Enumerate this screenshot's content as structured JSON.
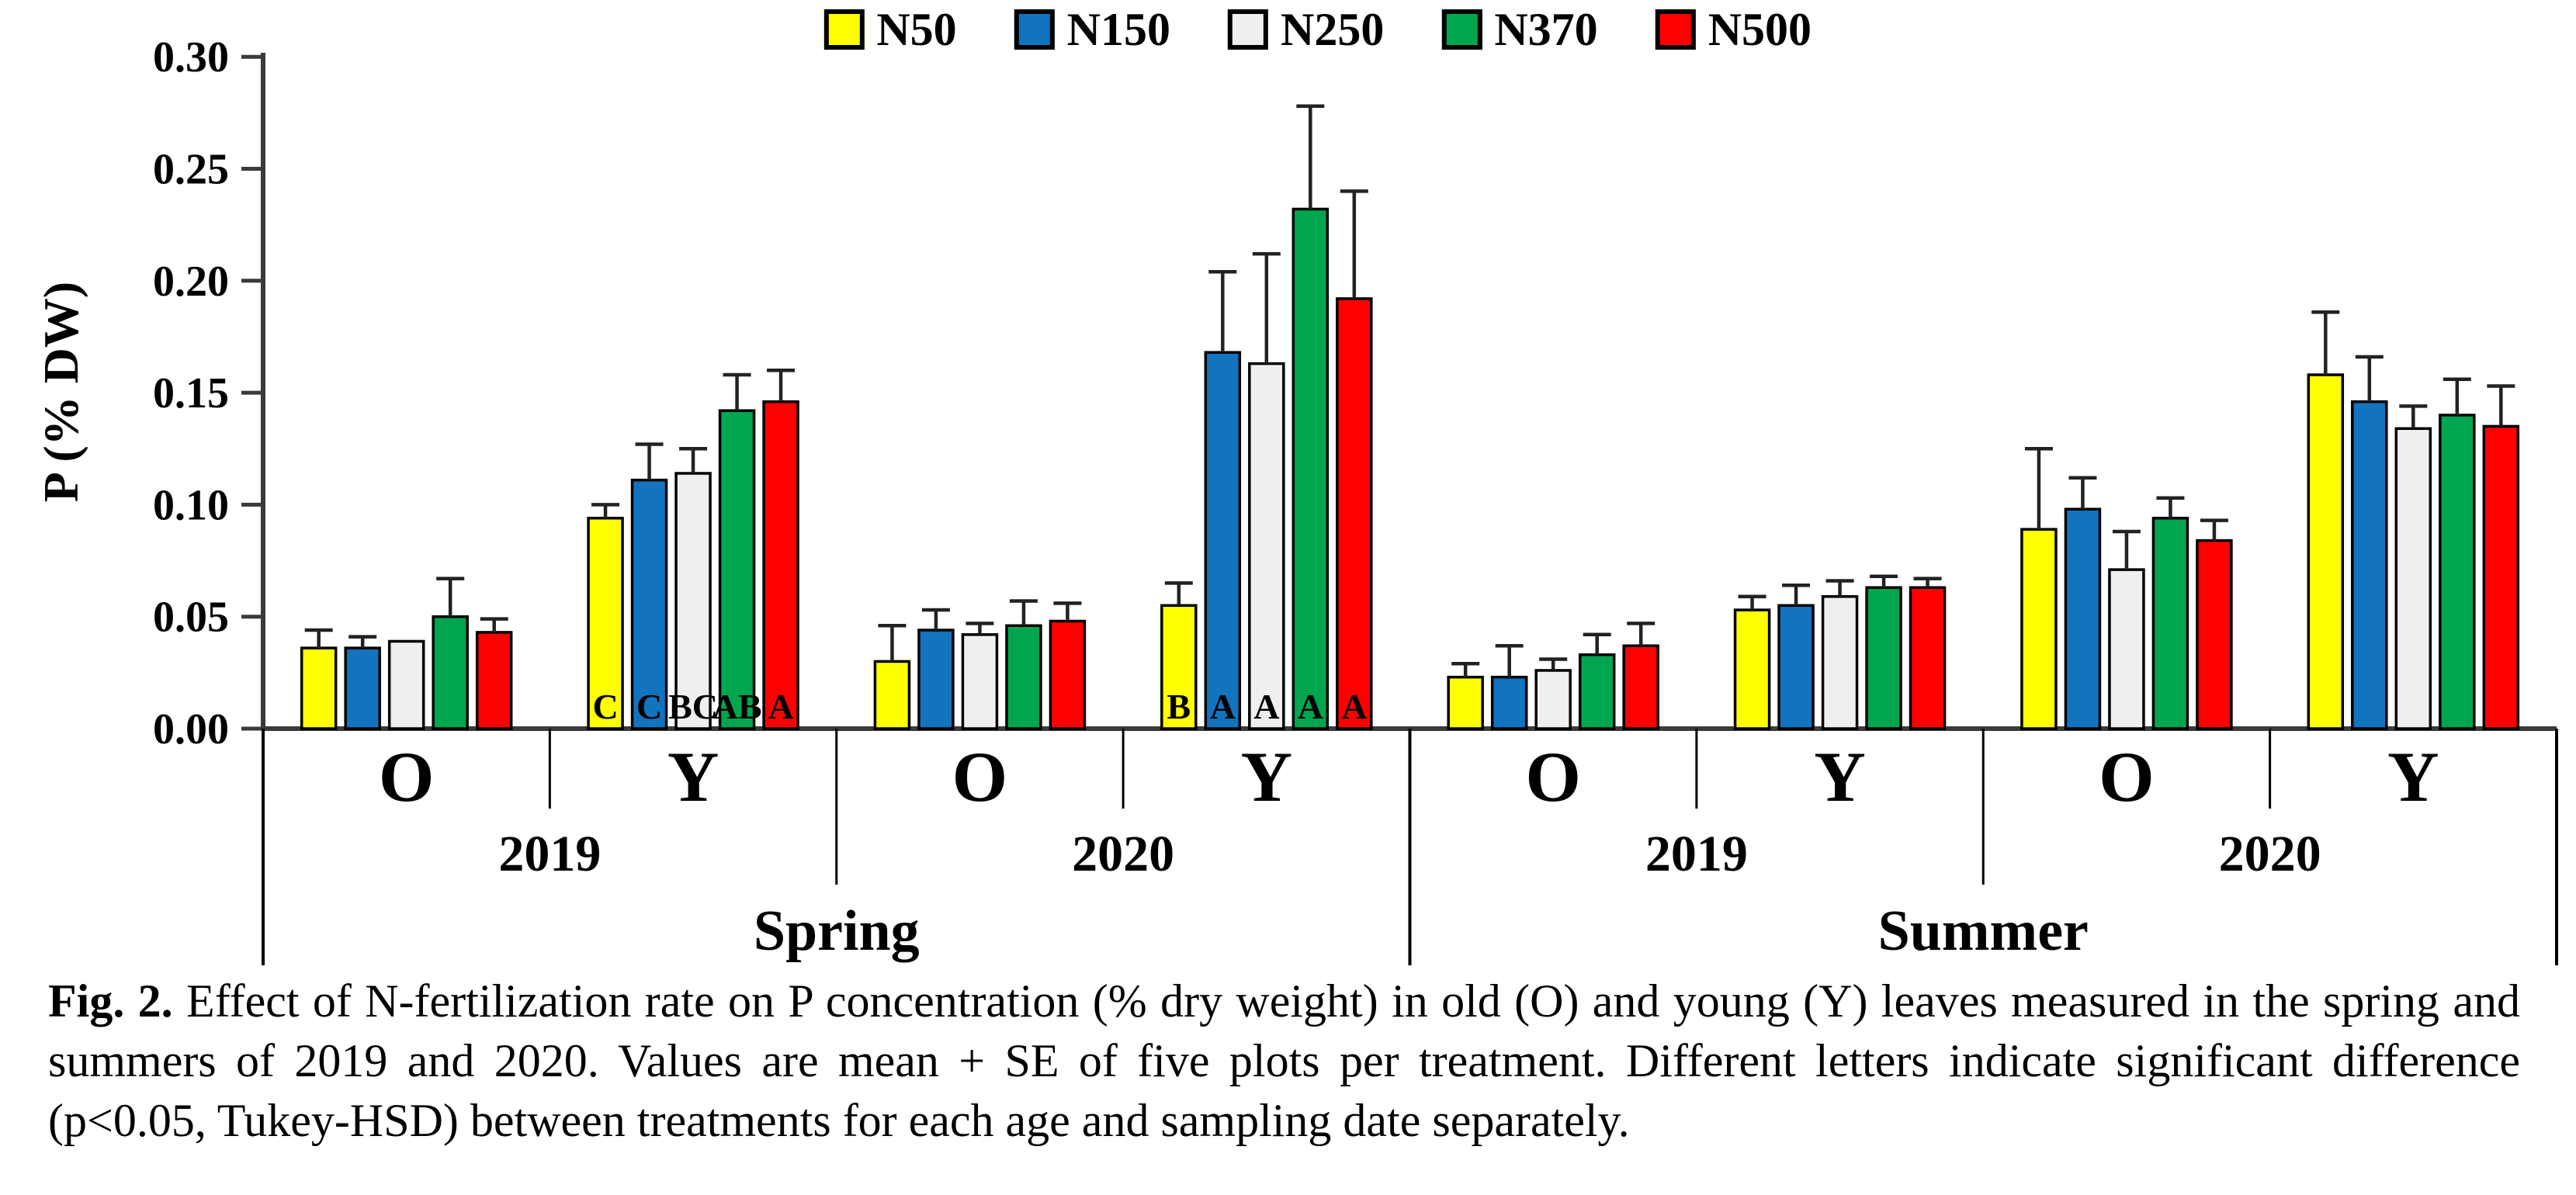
{
  "caption": {
    "label": "Fig. 2.",
    "text": " Effect of N-fertilization rate on P concentration (% dry weight) in old (O) and young (Y) leaves measured in the spring and summers of 2019 and 2020. Values are mean + SE of five plots per treatment. Different letters indicate significant difference (p<0.05, Tukey-HSD) between treatments for each age and sampling date separately."
  },
  "chart_data": {
    "type": "bar",
    "title": "",
    "ylabel": "P (% DW)",
    "ylim": [
      0,
      0.3
    ],
    "ytick_step": 0.05,
    "ytick_labels": [
      "0.00",
      "0.05",
      "0.10",
      "0.15",
      "0.20",
      "0.25",
      "0.30"
    ],
    "legend_position": "top-center",
    "grid": false,
    "axis_color": "#3a3a3a",
    "error_bar_color": "#222222",
    "series": [
      {
        "name": "N50",
        "color": "#FFFF00"
      },
      {
        "name": "N150",
        "color": "#1273BF"
      },
      {
        "name": "N250",
        "color": "#EFEFEF"
      },
      {
        "name": "N370",
        "color": "#00A550"
      },
      {
        "name": "N500",
        "color": "#FF0000"
      }
    ],
    "seasons": [
      "Spring",
      "Summer"
    ],
    "years": [
      "2019",
      "2020",
      "2019",
      "2020"
    ],
    "ages": [
      "O",
      "Y",
      "O",
      "Y",
      "O",
      "Y",
      "O",
      "Y"
    ],
    "groups": [
      {
        "season": "Spring",
        "year": "2019",
        "age": "O",
        "means": [
          0.036,
          0.036,
          0.039,
          0.05,
          0.043
        ],
        "se": [
          0.008,
          0.005,
          0.0,
          0.017,
          0.006
        ],
        "letters": [
          "",
          "",
          "",
          "",
          ""
        ]
      },
      {
        "season": "Spring",
        "year": "2019",
        "age": "Y",
        "means": [
          0.094,
          0.111,
          0.114,
          0.142,
          0.146
        ],
        "se": [
          0.006,
          0.016,
          0.011,
          0.016,
          0.014
        ],
        "letters": [
          "C",
          "C",
          "BC",
          "AB",
          "A"
        ]
      },
      {
        "season": "Spring",
        "year": "2020",
        "age": "O",
        "means": [
          0.03,
          0.044,
          0.042,
          0.046,
          0.048
        ],
        "se": [
          0.016,
          0.009,
          0.005,
          0.011,
          0.008
        ],
        "letters": [
          "",
          "",
          "",
          "",
          ""
        ]
      },
      {
        "season": "Spring",
        "year": "2020",
        "age": "Y",
        "means": [
          0.055,
          0.168,
          0.163,
          0.232,
          0.192
        ],
        "se": [
          0.01,
          0.036,
          0.049,
          0.046,
          0.048
        ],
        "letters": [
          "B",
          "A",
          "A",
          "A",
          "A"
        ]
      },
      {
        "season": "Summer",
        "year": "2019",
        "age": "O",
        "means": [
          0.023,
          0.023,
          0.026,
          0.033,
          0.037
        ],
        "se": [
          0.006,
          0.014,
          0.005,
          0.009,
          0.01
        ],
        "letters": [
          "",
          "",
          "",
          "",
          ""
        ]
      },
      {
        "season": "Summer",
        "year": "2019",
        "age": "Y",
        "means": [
          0.053,
          0.055,
          0.059,
          0.063,
          0.063
        ],
        "se": [
          0.006,
          0.009,
          0.007,
          0.005,
          0.004
        ],
        "letters": [
          "",
          "",
          "",
          "",
          ""
        ]
      },
      {
        "season": "Summer",
        "year": "2020",
        "age": "O",
        "means": [
          0.089,
          0.098,
          0.071,
          0.094,
          0.084
        ],
        "se": [
          0.036,
          0.014,
          0.017,
          0.009,
          0.009
        ],
        "letters": [
          "",
          "",
          "",
          "",
          ""
        ]
      },
      {
        "season": "Summer",
        "year": "2020",
        "age": "Y",
        "means": [
          0.158,
          0.146,
          0.134,
          0.14,
          0.135
        ],
        "se": [
          0.028,
          0.02,
          0.01,
          0.016,
          0.018
        ],
        "letters": [
          "",
          "",
          "",
          "",
          ""
        ]
      }
    ]
  }
}
